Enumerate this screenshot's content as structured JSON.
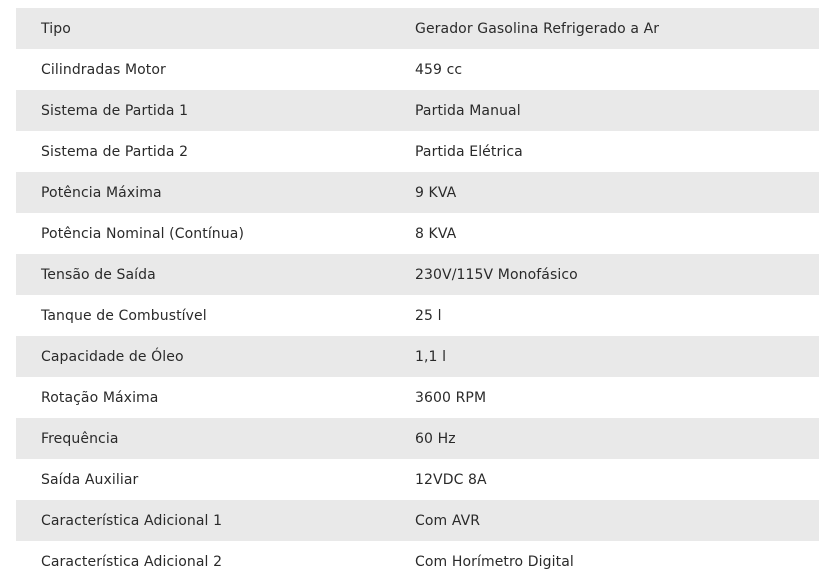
{
  "specs": [
    {
      "label": "Tipo",
      "value": "Gerador Gasolina Refrigerado a Ar"
    },
    {
      "label": "Cilindradas Motor",
      "value": "459 cc"
    },
    {
      "label": "Sistema de Partida 1",
      "value": "Partida Manual"
    },
    {
      "label": "Sistema de Partida 2",
      "value": "Partida Elétrica"
    },
    {
      "label": "Potência Máxima",
      "value": "9 KVA"
    },
    {
      "label": "Potência Nominal (Contínua)",
      "value": "8 KVA"
    },
    {
      "label": "Tensão de Saída",
      "value": "230V/115V Monofásico"
    },
    {
      "label": "Tanque de Combustível",
      "value": "25 l"
    },
    {
      "label": "Capacidade de Óleo",
      "value": "1,1 l"
    },
    {
      "label": "Rotação Máxima",
      "value": "3600 RPM"
    },
    {
      "label": "Frequência",
      "value": "60 Hz"
    },
    {
      "label": "Saída Auxiliar",
      "value": "12VDC 8A"
    },
    {
      "label": "Característica Adicional 1",
      "value": "Com AVR"
    },
    {
      "label": "Característica Adicional 2",
      "value": "Com Horímetro Digital"
    }
  ]
}
